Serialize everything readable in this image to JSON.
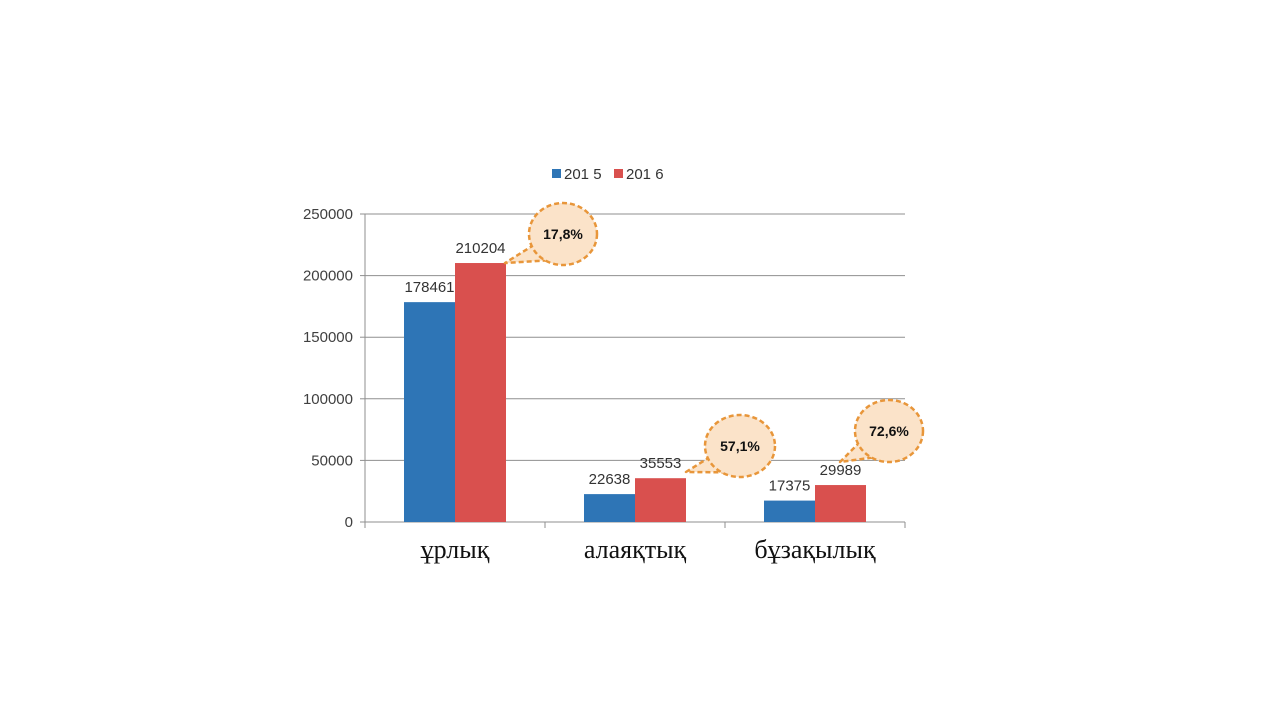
{
  "chart_data": {
    "type": "bar",
    "categories": [
      "ұрлық",
      "алаяқтық",
      "бұзақылық"
    ],
    "series": [
      {
        "name": "201 5",
        "color": "#2E75B6",
        "values": [
          178461,
          22638,
          17375
        ]
      },
      {
        "name": "201 6",
        "color": "#D9504E",
        "values": [
          210204,
          35553,
          29989
        ]
      }
    ],
    "ylim": [
      0,
      250000
    ],
    "yticks": [
      "0",
      "50000",
      "100000",
      "150000",
      "200000",
      "250000"
    ],
    "grid": true,
    "legend_position": "top-center",
    "data_labels": [
      [
        "178461",
        "22638",
        "17375"
      ],
      [
        "210204",
        "35553",
        "29989"
      ]
    ],
    "annotations": [
      "17,8%",
      "57,1%",
      "72,6%"
    ],
    "annotation_style": {
      "fill": "#FBE3C9",
      "stroke": "#E8963A"
    }
  }
}
